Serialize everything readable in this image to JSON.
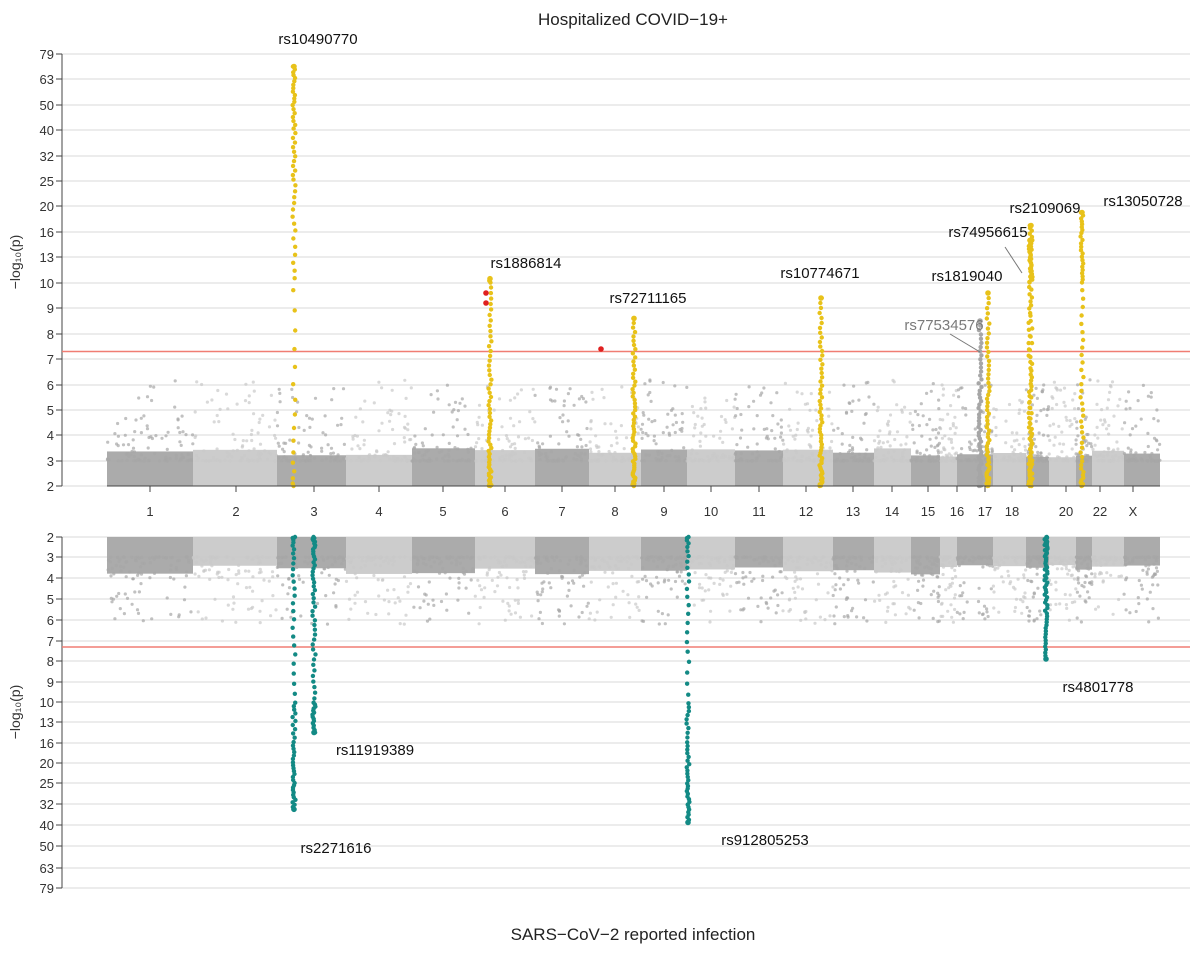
{
  "colors": {
    "gray_dark": "#a6a6a6",
    "gray_light": "#c9c9c9",
    "gold": "#e8c21a",
    "teal": "#138a85",
    "red_dot": "#e02020",
    "threshold": "#f07d73",
    "grid": "#d8d8d8",
    "axis": "#444444"
  },
  "chart_data": [
    {
      "panel": "top",
      "type": "scatter",
      "subtype": "manhattan",
      "title": "Hospitalized COVID−19+",
      "ylabel": "−log₁₀(p)",
      "yticks": [
        "2",
        "3",
        "4",
        "5",
        "6",
        "7",
        "8",
        "9",
        "10",
        "13",
        "16",
        "20",
        "25",
        "32",
        "40",
        "50",
        "63",
        "79"
      ],
      "threshold": 7.3,
      "chromosomes": [
        "1",
        "2",
        "3",
        "4",
        "5",
        "6",
        "7",
        "8",
        "9",
        "10",
        "11",
        "12",
        "13",
        "14",
        "15",
        "16",
        "17",
        "18",
        "20",
        "22",
        "X"
      ],
      "hits": [
        {
          "snp": "rs10490770",
          "chr": "3",
          "max_log10p": 71,
          "color": "gold"
        },
        {
          "snp": "rs1886814",
          "chr": "6",
          "max_log10p": 10.5,
          "color": "gold"
        },
        {
          "snp": "rs72711165",
          "chr": "8",
          "max_log10p": 8.6,
          "color": "gold"
        },
        {
          "snp": "rs10774671",
          "chr": "12",
          "max_log10p": 9.4,
          "color": "gold"
        },
        {
          "snp": "rs1819040",
          "chr": "17",
          "max_log10p": 9.6,
          "color": "gold"
        },
        {
          "snp": "rs77534576",
          "chr": "17",
          "max_log10p": 8.5,
          "color": "gray"
        },
        {
          "snp": "rs74956615",
          "chr": "19",
          "max_log10p": 15,
          "color": "gold"
        },
        {
          "snp": "rs2109069",
          "chr": "19",
          "max_log10p": 17,
          "color": "gold"
        },
        {
          "snp": "rs13050728",
          "chr": "21",
          "max_log10p": 19,
          "color": "gold"
        }
      ]
    },
    {
      "panel": "bottom",
      "type": "scatter",
      "subtype": "manhattan",
      "title": "SARS−CoV−2 reported infection",
      "ylabel": "−log₁₀(p)",
      "yticks": [
        "2",
        "3",
        "4",
        "5",
        "6",
        "7",
        "8",
        "9",
        "10",
        "13",
        "16",
        "20",
        "25",
        "32",
        "40",
        "50",
        "63",
        "79"
      ],
      "threshold": 7.3,
      "inverted": true,
      "hits": [
        {
          "snp": "rs2271616",
          "chr": "3",
          "max_log10p": 34,
          "color": "teal"
        },
        {
          "snp": "rs11919389",
          "chr": "3",
          "max_log10p": 14.5,
          "color": "teal"
        },
        {
          "snp": "rs912805253",
          "chr": "9",
          "max_log10p": 39,
          "color": "teal"
        },
        {
          "snp": "rs4801778",
          "chr": "19",
          "max_log10p": 7.9,
          "color": "teal"
        }
      ]
    }
  ]
}
